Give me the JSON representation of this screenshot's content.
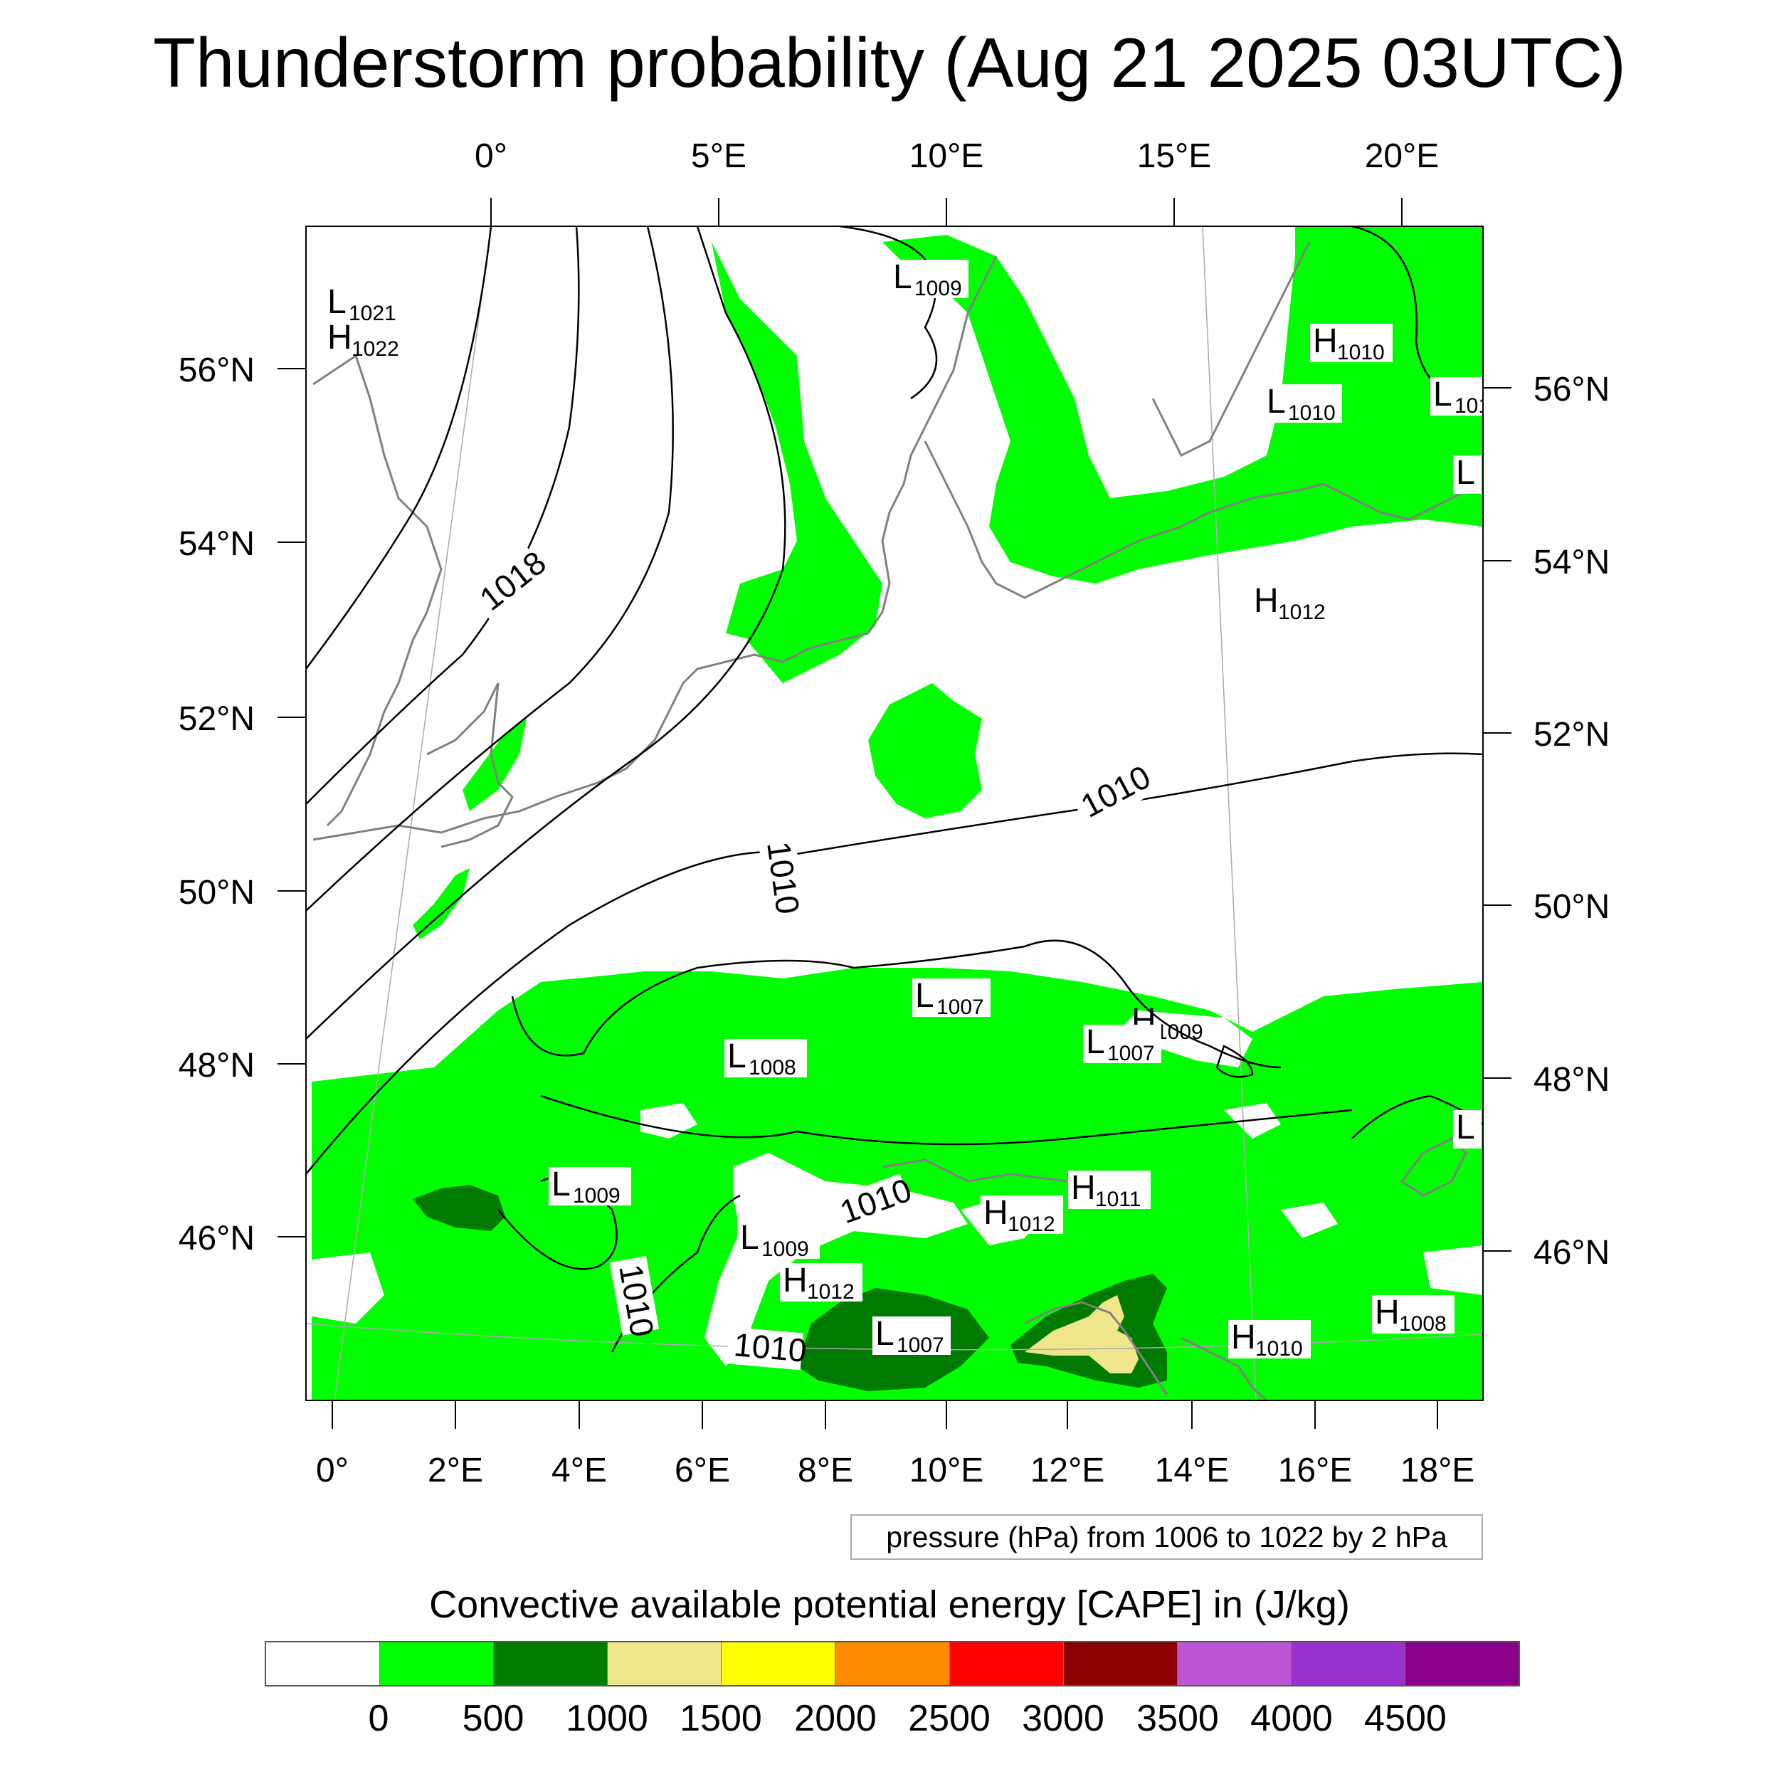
{
  "title": "Thunderstorm probability (Aug 21 2025 03UTC)",
  "top_lon_labels": [
    "0°",
    "5°E",
    "10°E",
    "15°E",
    "20°E"
  ],
  "bottom_lon_labels": [
    "0°",
    "2°E",
    "4°E",
    "6°E",
    "8°E",
    "10°E",
    "12°E",
    "14°E",
    "16°E",
    "18°E"
  ],
  "left_lat_labels": [
    "56°N",
    "54°N",
    "52°N",
    "50°N",
    "48°N",
    "46°N"
  ],
  "right_lat_labels": [
    "56°N",
    "54°N",
    "52°N",
    "50°N",
    "48°N",
    "46°N"
  ],
  "pressure_centers": [
    {
      "letter": "L",
      "value": "1021"
    },
    {
      "letter": "H",
      "value": "1022"
    },
    {
      "letter": "L",
      "value": "1009"
    },
    {
      "letter": "H",
      "value": "1010"
    },
    {
      "letter": "L",
      "value": "1010"
    },
    {
      "letter": "L",
      "value": "101"
    },
    {
      "letter": "L",
      "value": ""
    },
    {
      "letter": "H",
      "value": "1012"
    },
    {
      "letter": "L",
      "value": "1007"
    },
    {
      "letter": "H",
      "value": "1009"
    },
    {
      "letter": "L",
      "value": "1007"
    },
    {
      "letter": "L",
      "value": "1008"
    },
    {
      "letter": "L",
      "value": ""
    },
    {
      "letter": "L",
      "value": "1009"
    },
    {
      "letter": "H",
      "value": "1011"
    },
    {
      "letter": "H",
      "value": "1012"
    },
    {
      "letter": "L",
      "value": "1009"
    },
    {
      "letter": "H",
      "value": "1012"
    },
    {
      "letter": "L",
      "value": "1007"
    },
    {
      "letter": "H",
      "value": "1010"
    },
    {
      "letter": "H",
      "value": "1008"
    }
  ],
  "isobar_labels": [
    "1018",
    "1010",
    "1010",
    "1010",
    "1010",
    "1010"
  ],
  "pressure_note": "pressure (hPa) from 1006 to 1022 by 2 hPa",
  "legend": {
    "title": "Convective available potential energy [CAPE] in (J/kg)",
    "colors": [
      "#ffffff",
      "#00ff00",
      "#007a00",
      "#f0e68c",
      "#ffff00",
      "#ff8c00",
      "#ff0000",
      "#8b0000",
      "#ba55d3",
      "#9932cc",
      "#8b008b"
    ],
    "labels": [
      "0",
      "500",
      "1000",
      "1500",
      "2000",
      "2500",
      "3000",
      "3500",
      "4000",
      "4500"
    ]
  },
  "colors": {
    "cape_low": "#00ff00",
    "cape_mid": "#007a00",
    "cape_high": "#f0e68c",
    "coastline": "#808080",
    "isobar": "#000000"
  }
}
